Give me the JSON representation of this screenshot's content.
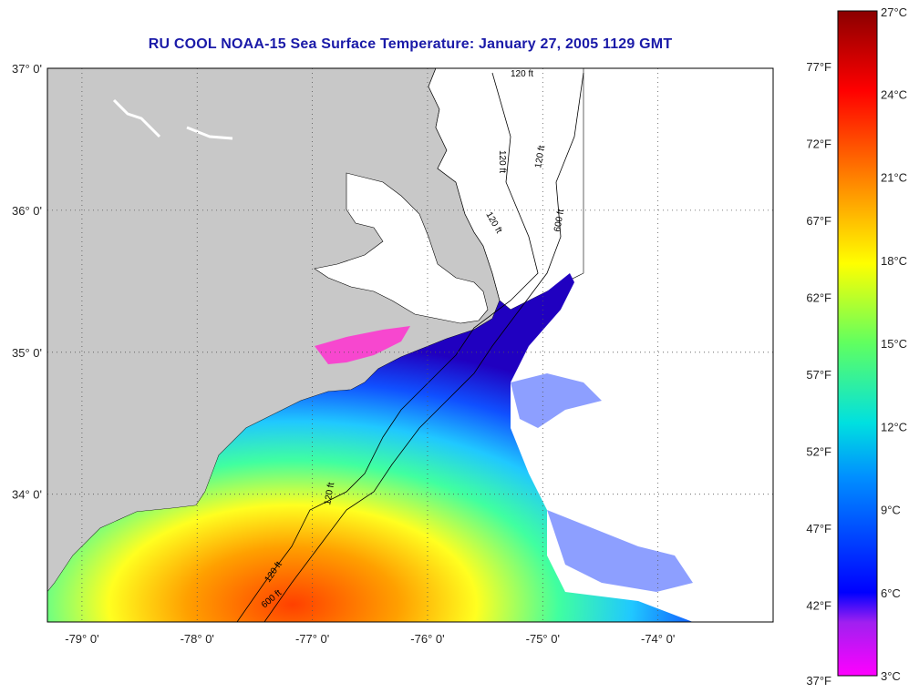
{
  "title": "RU COOL  NOAA-15  Sea Surface Temperature:  January 27, 2005 1129 GMT",
  "map": {
    "lon_range": [
      -79.3,
      -73.0
    ],
    "lat_range": [
      33.1,
      37.0
    ],
    "lat_ticks": [
      {
        "value": 37,
        "label": "37° 0'"
      },
      {
        "value": 36,
        "label": "36° 0'"
      },
      {
        "value": 35,
        "label": "35° 0'"
      },
      {
        "value": 34,
        "label": "34° 0'"
      }
    ],
    "lon_ticks": [
      {
        "value": -79,
        "label": "-79° 0'"
      },
      {
        "value": -78,
        "label": "-78° 0'"
      },
      {
        "value": -77,
        "label": "-77° 0'"
      },
      {
        "value": -76,
        "label": "-76° 0'"
      },
      {
        "value": -75,
        "label": "-75° 0'"
      },
      {
        "value": -74,
        "label": "-74° 0'"
      }
    ],
    "grid": true,
    "contour_labels": [
      "120 ft",
      "120 ft",
      "120 ft",
      "600 ft",
      "120 ft",
      "120 ft",
      "120 ft",
      "600 ft"
    ],
    "colors": {
      "land": "#c8c8c8",
      "ocean_nodata": "#ffffff",
      "grid": "#555555"
    }
  },
  "colorbar": {
    "celsius_labels": [
      "27°C",
      "24°C",
      "21°C",
      "18°C",
      "15°C",
      "12°C",
      "9°C",
      "6°C",
      "3°C"
    ],
    "fahrenheit_labels": [
      "77°F",
      "72°F",
      "67°F",
      "62°F",
      "57°F",
      "52°F",
      "47°F",
      "42°F",
      "37°F"
    ],
    "range_c": [
      3,
      27
    ],
    "stops": [
      "#ff00ff",
      "#8a2be2",
      "#0000ff",
      "#0080ff",
      "#00dddd",
      "#40ff80",
      "#ffff00",
      "#ff8000",
      "#ff0000",
      "#8b0000"
    ]
  }
}
